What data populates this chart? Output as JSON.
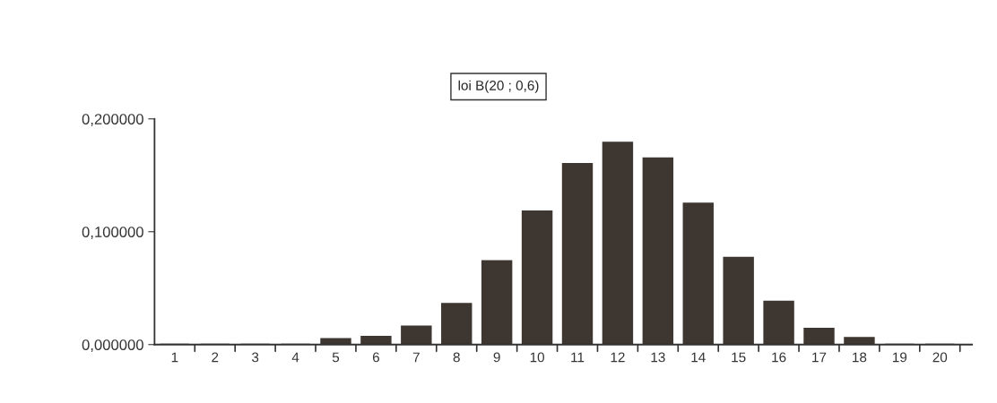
{
  "chart_data": {
    "type": "bar",
    "title": "loi B(20 ; 0,6)",
    "categories": [
      "1",
      "2",
      "3",
      "4",
      "5",
      "6",
      "7",
      "8",
      "9",
      "10",
      "11",
      "12",
      "13",
      "14",
      "15",
      "16",
      "17",
      "18",
      "19",
      "20"
    ],
    "values": [
      0,
      0,
      0,
      0,
      0.005,
      0.007,
      0.016,
      0.036,
      0.074,
      0.118,
      0.16,
      0.179,
      0.165,
      0.125,
      0.077,
      0.038,
      0.014,
      0.006,
      0,
      0
    ],
    "color": "#3d3631",
    "ylim": [
      0,
      0.2
    ],
    "yticks": [
      {
        "value": 0,
        "label": "0,000000"
      },
      {
        "value": 0.1,
        "label": "0,100000"
      },
      {
        "value": 0.2,
        "label": "0,200000"
      }
    ],
    "grid": false,
    "legend": false
  }
}
